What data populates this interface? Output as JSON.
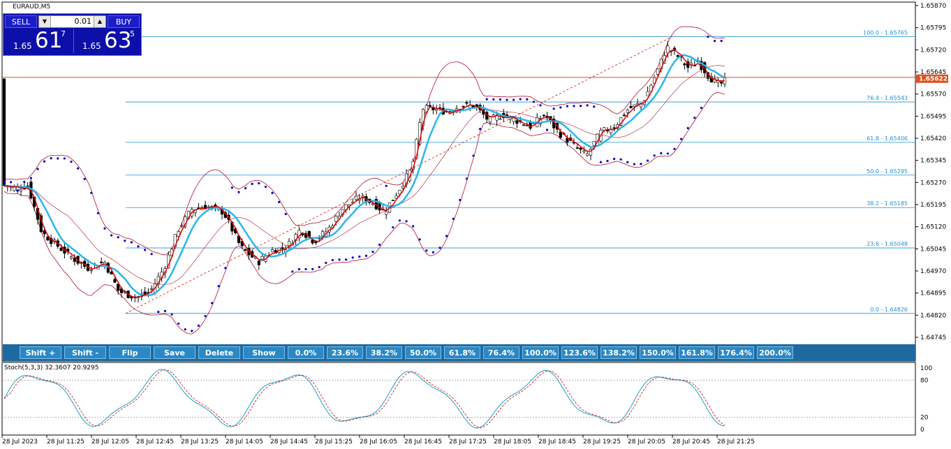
{
  "symbol": "EURAUD,M5",
  "trade_panel": {
    "sell_label": "SELL",
    "buy_label": "BUY",
    "lot": "0.01",
    "sell_price": {
      "prefix": "1.65",
      "big": "61",
      "sup": "7"
    },
    "buy_price": {
      "prefix": "1.65",
      "big": "63",
      "sup": "5"
    }
  },
  "price_axis": {
    "ticks": [
      "1.65870",
      "1.65795",
      "1.65720",
      "1.65645",
      "1.65570",
      "1.65495",
      "1.65420",
      "1.65345",
      "1.65270",
      "1.65195",
      "1.65120",
      "1.65045",
      "1.64970",
      "1.64895",
      "1.64820",
      "1.64745"
    ],
    "current_price": "1.65622"
  },
  "fib_levels": [
    {
      "label": "100.0 - 1.65765"
    },
    {
      "label": "76.4 - 1.65543"
    },
    {
      "label": "61.8 - 1.65406"
    },
    {
      "label": "50.0 - 1.65295"
    },
    {
      "label": "38.2 - 1.65185"
    },
    {
      "label": "23.6 - 1.65048"
    },
    {
      "label": "0.0 - 1.64826"
    }
  ],
  "toolbar": {
    "buttons": [
      "Shift +",
      "Shift -",
      "Flip",
      "Save",
      "Delete",
      "Show",
      "0.0%",
      "23.6%",
      "38.2%",
      "50.0%",
      "61.8%",
      "76.4%",
      "100.0%",
      "123.6%",
      "138.2%",
      "150.0%",
      "161.8%",
      "176.4%",
      "200.0%"
    ]
  },
  "stoch": {
    "title": "Stoch(5,3,3) 32.3607 20.9295",
    "levels": [
      "100",
      "80",
      "20",
      "0"
    ]
  },
  "time_axis": {
    "labels": [
      "28 Jul 2023",
      "28 Jul 11:25",
      "28 Jul 12:05",
      "28 Jul 12:45",
      "28 Jul 13:25",
      "28 Jul 14:05",
      "28 Jul 14:45",
      "28 Jul 15:25",
      "28 Jul 16:05",
      "28 Jul 16:45",
      "28 Jul 17:25",
      "28 Jul 18:05",
      "28 Jul 18:45",
      "28 Jul 19:25",
      "28 Jul 20:05",
      "28 Jul 20:45",
      "28 Jul 21:25"
    ]
  },
  "colors": {
    "fib_line": "#1f8fd6",
    "bollinger": "#b0102a",
    "fast_ma": "#e00000",
    "slow_ma": "#29b6ee",
    "sar": "#0000cc",
    "stoch_main": "#1aa0c8",
    "stoch_signal": "#d00000",
    "current_price_line": "#e05020"
  }
}
